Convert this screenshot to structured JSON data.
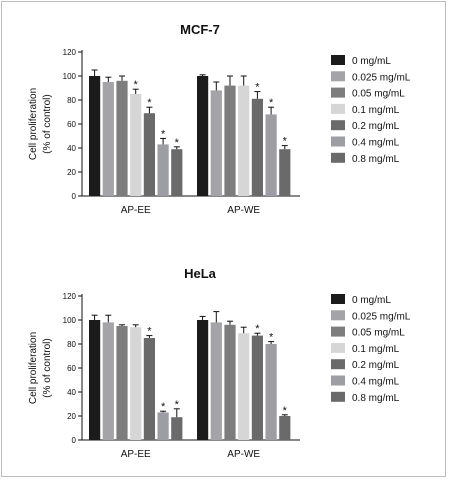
{
  "chart_data": [
    {
      "type": "bar",
      "title": "MCF-7",
      "ylabel_line1": "Cell proliferation",
      "ylabel_line2": "(% of control)",
      "ylim": [
        0,
        120
      ],
      "yticks": [
        "0",
        "20",
        "40",
        "60",
        "80",
        "100",
        "120"
      ],
      "groups": [
        "AP-EE",
        "AP-WE"
      ],
      "series": [
        {
          "name": "0 mg/mL",
          "color": "#1b1b1b",
          "values": [
            100,
            100
          ],
          "errors": [
            5,
            1
          ],
          "significant": [
            false,
            false
          ]
        },
        {
          "name": "0.025 mg/mL",
          "color": "#a3a3a8",
          "values": [
            95,
            88
          ],
          "errors": [
            4,
            7
          ],
          "significant": [
            false,
            false
          ]
        },
        {
          "name": "0.05 mg/mL",
          "color": "#7d7d7d",
          "values": [
            96,
            92
          ],
          "errors": [
            4,
            8
          ],
          "significant": [
            false,
            false
          ]
        },
        {
          "name": "0.1 mg/mL",
          "color": "#d6d6d6",
          "values": [
            85,
            92
          ],
          "errors": [
            4,
            8
          ],
          "significant": [
            true,
            false
          ]
        },
        {
          "name": "0.2 mg/mL",
          "color": "#6a6a6a",
          "values": [
            69,
            81
          ],
          "errors": [
            5,
            6
          ],
          "significant": [
            true,
            true
          ]
        },
        {
          "name": "0.4 mg/mL",
          "color": "#9d9da4",
          "values": [
            43,
            68
          ],
          "errors": [
            5,
            6
          ],
          "significant": [
            true,
            true
          ]
        },
        {
          "name": "0.8 mg/mL",
          "color": "#6a6a6a",
          "values": [
            39,
            39
          ],
          "errors": [
            2,
            3
          ],
          "significant": [
            true,
            true
          ]
        }
      ],
      "legend_position": "right"
    },
    {
      "type": "bar",
      "title": "HeLa",
      "ylabel_line1": "Cell proliferation",
      "ylabel_line2": "(% of control)",
      "ylim": [
        0,
        120
      ],
      "yticks": [
        "0",
        "20",
        "40",
        "60",
        "80",
        "100",
        "120"
      ],
      "groups": [
        "AP-EE",
        "AP-WE"
      ],
      "series": [
        {
          "name": "0 mg/mL",
          "color": "#1b1b1b",
          "values": [
            100,
            100
          ],
          "errors": [
            4,
            3
          ],
          "significant": [
            false,
            false
          ]
        },
        {
          "name": "0.025 mg/mL",
          "color": "#a3a3a8",
          "values": [
            98,
            98
          ],
          "errors": [
            6,
            9
          ],
          "significant": [
            false,
            false
          ]
        },
        {
          "name": "0.05 mg/mL",
          "color": "#7d7d7d",
          "values": [
            95,
            96
          ],
          "errors": [
            1,
            3
          ],
          "significant": [
            false,
            false
          ]
        },
        {
          "name": "0.1 mg/mL",
          "color": "#d6d6d6",
          "values": [
            94,
            89
          ],
          "errors": [
            2,
            5
          ],
          "significant": [
            false,
            false
          ]
        },
        {
          "name": "0.2 mg/mL",
          "color": "#6a6a6a",
          "values": [
            85,
            87
          ],
          "errors": [
            2,
            2
          ],
          "significant": [
            true,
            true
          ]
        },
        {
          "name": "0.4 mg/mL",
          "color": "#9d9da4",
          "values": [
            23,
            80
          ],
          "errors": [
            1,
            2
          ],
          "significant": [
            true,
            true
          ]
        },
        {
          "name": "0.8 mg/mL",
          "color": "#6a6a6a",
          "values": [
            19,
            20
          ],
          "errors": [
            7,
            1
          ],
          "significant": [
            true,
            true
          ]
        }
      ],
      "legend_position": "right"
    }
  ]
}
